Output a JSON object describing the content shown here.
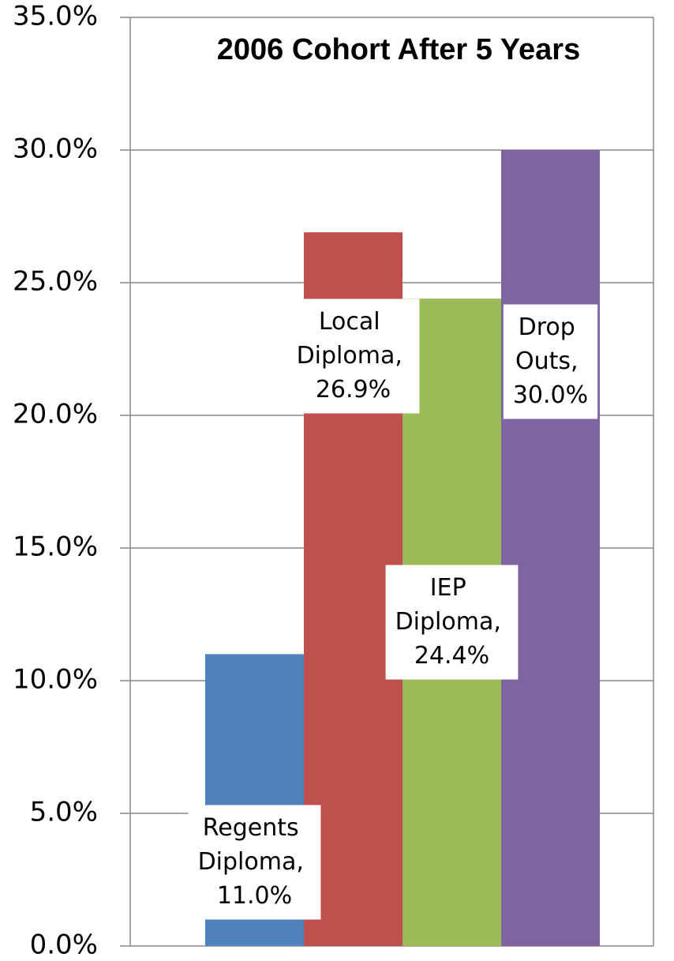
{
  "chart_data": {
    "type": "bar",
    "title": "2006 Cohort After 5 Years",
    "series": [
      {
        "color": "#4f81bd",
        "values": [
          11.0
        ],
        "value_labels": [
          "Regents Diploma, 11.0%"
        ]
      },
      {
        "color": "#c0504d",
        "values": [
          26.9
        ],
        "value_labels": [
          "Local Diploma, 26.9%"
        ]
      },
      {
        "color": "#9bbb59",
        "values": [
          24.4
        ],
        "value_labels": [
          "IEP Diploma, 24.4%"
        ]
      },
      {
        "color": "#8064a2",
        "values": [
          30.0
        ],
        "value_labels": [
          "Drop Outs, 30.0%"
        ]
      }
    ],
    "ylim": [
      0,
      35
    ],
    "yticks": [
      {
        "value": 0,
        "label": "0.0%"
      },
      {
        "value": 5,
        "label": "5.0%"
      },
      {
        "value": 10,
        "label": "10.0%"
      },
      {
        "value": 15,
        "label": "15.0%"
      },
      {
        "value": 20,
        "label": "20.0%"
      },
      {
        "value": 25,
        "label": "25.0%"
      },
      {
        "value": 30,
        "label": "30.0%"
      },
      {
        "value": 35,
        "label": "35.0%"
      }
    ],
    "grid": true
  }
}
